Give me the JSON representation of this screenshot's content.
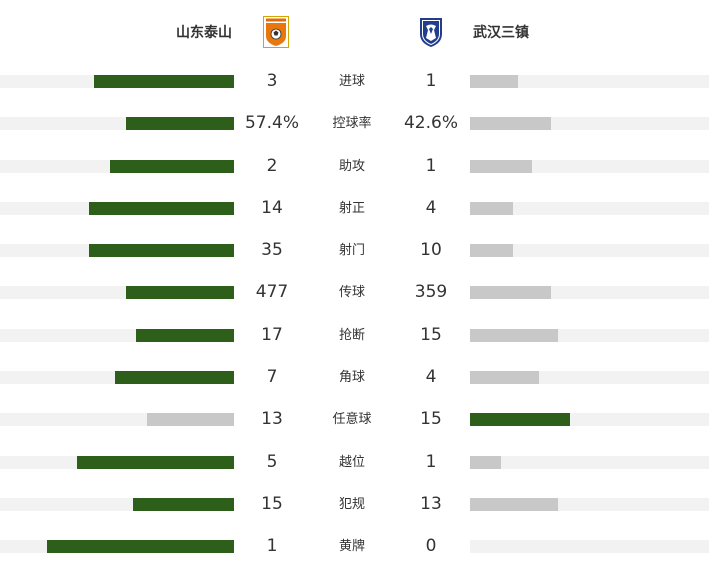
{
  "home_team": {
    "name": "山东泰山"
  },
  "away_team": {
    "name": "武汉三镇"
  },
  "colors": {
    "leader": "#2d5e1a",
    "trailer": "#c8c8c8",
    "track": "#f2f2f2"
  },
  "stats": [
    {
      "label": "进球",
      "home": "3",
      "away": "1",
      "home_fill": 0.6,
      "away_fill": 0.2,
      "leader": "home"
    },
    {
      "label": "控球率",
      "home": "57.4%",
      "away": "42.6%",
      "home_fill": 0.46,
      "away_fill": 0.34,
      "leader": "home"
    },
    {
      "label": "助攻",
      "home": "2",
      "away": "1",
      "home_fill": 0.53,
      "away_fill": 0.26,
      "leader": "home"
    },
    {
      "label": "射正",
      "home": "14",
      "away": "4",
      "home_fill": 0.62,
      "away_fill": 0.18,
      "leader": "home"
    },
    {
      "label": "射门",
      "home": "35",
      "away": "10",
      "home_fill": 0.62,
      "away_fill": 0.18,
      "leader": "home"
    },
    {
      "label": "传球",
      "home": "477",
      "away": "359",
      "home_fill": 0.46,
      "away_fill": 0.34,
      "leader": "home"
    },
    {
      "label": "抢断",
      "home": "17",
      "away": "15",
      "home_fill": 0.42,
      "away_fill": 0.37,
      "leader": "home"
    },
    {
      "label": "角球",
      "home": "7",
      "away": "4",
      "home_fill": 0.51,
      "away_fill": 0.29,
      "leader": "home"
    },
    {
      "label": "任意球",
      "home": "13",
      "away": "15",
      "home_fill": 0.37,
      "away_fill": 0.42,
      "leader": "away"
    },
    {
      "label": "越位",
      "home": "5",
      "away": "1",
      "home_fill": 0.67,
      "away_fill": 0.13,
      "leader": "home"
    },
    {
      "label": "犯规",
      "home": "15",
      "away": "13",
      "home_fill": 0.43,
      "away_fill": 0.37,
      "leader": "home"
    },
    {
      "label": "黄牌",
      "home": "1",
      "away": "0",
      "home_fill": 0.8,
      "away_fill": 0.0,
      "leader": "home"
    }
  ]
}
